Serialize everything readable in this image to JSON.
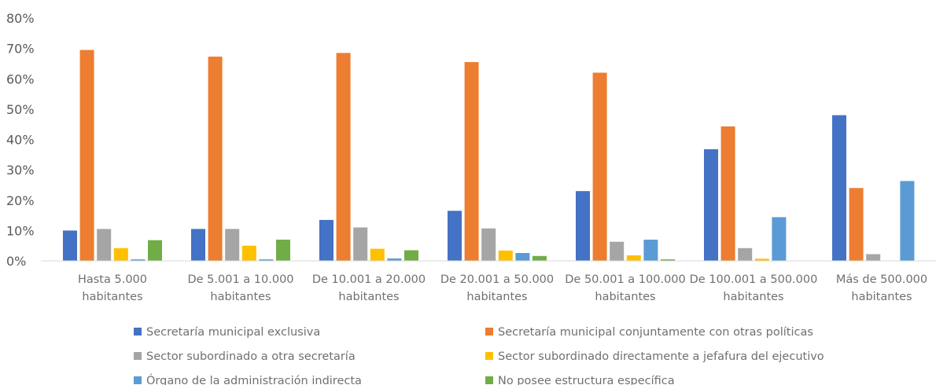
{
  "chart_data": {
    "type": "bar",
    "title": "",
    "xlabel": "",
    "ylabel": "",
    "ylim": [
      0,
      80
    ],
    "yticks": [
      "0%",
      "10%",
      "20%",
      "30%",
      "40%",
      "50%",
      "60%",
      "70%",
      "80%"
    ],
    "grid": false,
    "legend_position": "bottom",
    "categories": [
      [
        "Hasta 5.000",
        "habitantes"
      ],
      [
        "De 5.001 a 10.000",
        "habitantes"
      ],
      [
        "De 10.001 a 20.000",
        "habitantes"
      ],
      [
        "De 20.001 a 50.000",
        "habitantes"
      ],
      [
        "De 50.001 a 100.000",
        "habitantes"
      ],
      [
        "De 100.001 a 500.000",
        "habitantes"
      ],
      [
        "Más de 500.000",
        "habitantes"
      ]
    ],
    "series": [
      {
        "name": "Secretaría municipal exclusiva",
        "color": "#4472C4",
        "values": [
          10,
          10.5,
          13.5,
          16.5,
          23,
          36.8,
          48
        ]
      },
      {
        "name": "Secretaría municipal conjuntamente con otras políticas",
        "color": "#ED7D31",
        "values": [
          69.5,
          67.3,
          68.5,
          65.5,
          62,
          44.3,
          24
        ]
      },
      {
        "name": "Sector subordinado a otra secretaría",
        "color": "#A5A5A5",
        "values": [
          10.5,
          10.5,
          11,
          10.7,
          6.3,
          4.2,
          2.2
        ]
      },
      {
        "name": "Sector subordinado directamente a jefafura del ejecutivo",
        "color": "#FFC000",
        "values": [
          4.2,
          5,
          4,
          3.4,
          1.8,
          0.7,
          0
        ]
      },
      {
        "name": "Órgano de la administración indirecta",
        "color": "#5B9BD5",
        "values": [
          0.5,
          0.5,
          0.8,
          2.6,
          7,
          14.4,
          26.3
        ]
      },
      {
        "name": "No posee estructura específica",
        "color": "#70AD47",
        "values": [
          6.8,
          7,
          3.5,
          1.6,
          0.5,
          0,
          0
        ]
      }
    ]
  }
}
